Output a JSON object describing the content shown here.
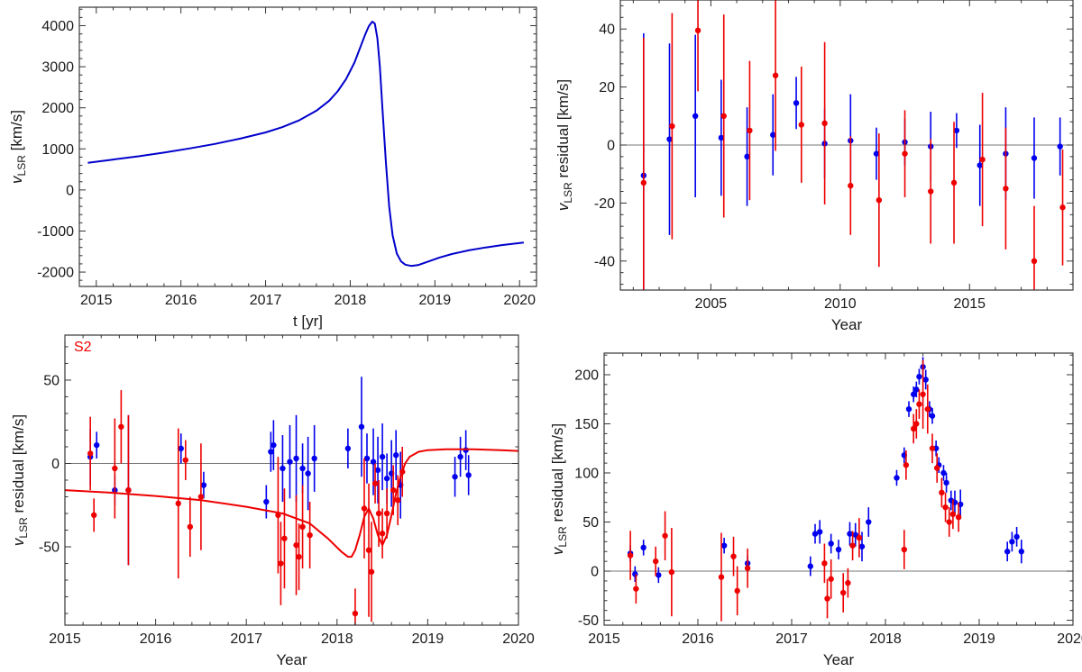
{
  "chart_data": [
    {
      "type": "line",
      "panel": "top-left",
      "xlabel": "t [yr]",
      "ylabel_main": "v",
      "ylabel_sub": "LSR",
      "ylabel_unit": " [km/s]",
      "xlim": [
        2014.8,
        2020.2
      ],
      "ylim": [
        -2350,
        4450
      ],
      "xticks": [
        2015,
        2016,
        2017,
        2018,
        2019,
        2020
      ],
      "yticks": [
        -2000,
        -1000,
        0,
        1000,
        2000,
        3000,
        4000
      ],
      "series": [
        {
          "name": "model",
          "color": "#0000cc",
          "x": [
            2014.9,
            2015.2,
            2015.5,
            2015.8,
            2016.1,
            2016.4,
            2016.7,
            2017.0,
            2017.2,
            2017.4,
            2017.6,
            2017.75,
            2017.85,
            2017.95,
            2018.05,
            2018.12,
            2018.18,
            2018.22,
            2018.26,
            2018.29,
            2018.32,
            2018.35,
            2018.38,
            2018.42,
            2018.46,
            2018.5,
            2018.55,
            2018.6,
            2018.65,
            2018.72,
            2018.8,
            2018.9,
            2019.05,
            2019.2,
            2019.4,
            2019.6,
            2019.8,
            2020.05
          ],
          "y": [
            660,
            740,
            820,
            910,
            1010,
            1120,
            1250,
            1400,
            1530,
            1700,
            1930,
            2170,
            2400,
            2700,
            3100,
            3480,
            3800,
            3990,
            4100,
            4050,
            3700,
            3000,
            2000,
            700,
            -400,
            -1100,
            -1550,
            -1740,
            -1820,
            -1850,
            -1830,
            -1760,
            -1650,
            -1560,
            -1470,
            -1400,
            -1340,
            -1280
          ]
        }
      ]
    },
    {
      "type": "scatter",
      "panel": "top-right",
      "xlabel": "Year",
      "ylabel_main": "v",
      "ylabel_sub": "LSR",
      "ylabel_unit": " residual [km/s]",
      "xlim": [
        2001.5,
        2019.0
      ],
      "ylim": [
        -50,
        50
      ],
      "xticks": [
        2005,
        2010,
        2015
      ],
      "yticks": [
        -40,
        -20,
        0,
        20,
        40
      ],
      "series": [
        {
          "name": "blue",
          "color": "#0000ee",
          "x": [
            2002.4,
            2003.4,
            2004.4,
            2005.4,
            2006.4,
            2007.4,
            2008.3,
            2009.4,
            2010.4,
            2011.4,
            2012.5,
            2013.5,
            2014.5,
            2015.4,
            2016.4,
            2017.5,
            2018.5
          ],
          "y": [
            -10.5,
            2,
            10,
            2.5,
            -4,
            3.5,
            14.5,
            0.5,
            1.5,
            -3,
            1,
            -0.5,
            5,
            -7,
            -3,
            -4.5,
            -0.5
          ],
          "err": [
            49,
            33,
            28,
            20,
            17,
            14,
            9,
            12,
            16,
            9,
            8,
            12,
            6,
            14,
            16,
            14,
            10
          ]
        },
        {
          "name": "red",
          "color": "#ee0000",
          "x": [
            2002.4,
            2003.5,
            2004.5,
            2005.5,
            2006.5,
            2007.5,
            2008.5,
            2009.4,
            2010.4,
            2011.5,
            2012.5,
            2013.5,
            2014.4,
            2015.5,
            2016.4,
            2017.5,
            2018.6
          ],
          "y": [
            -13,
            6.5,
            39.5,
            10,
            5,
            24,
            7,
            7.5,
            -14,
            -19,
            -3,
            -16,
            -13,
            -5,
            -15,
            -40,
            -21.5
          ],
          "err": [
            50,
            39,
            21,
            35,
            24,
            26,
            20,
            28,
            17,
            23,
            15,
            18,
            21,
            23,
            21,
            19,
            20
          ]
        }
      ]
    },
    {
      "type": "scatter",
      "panel": "bottom-left",
      "annotation": "S2",
      "xlabel": "Year",
      "ylabel_main": "v",
      "ylabel_sub": "LSR",
      "ylabel_unit": " residual [km/s]",
      "xlim": [
        2015,
        2020
      ],
      "ylim": [
        -97,
        77
      ],
      "xticks": [
        2015,
        2016,
        2017,
        2018,
        2019,
        2020
      ],
      "yticks": [
        -50,
        0,
        50
      ],
      "series": [
        {
          "name": "blue",
          "color": "#0000ee",
          "x": [
            2015.28,
            2015.35,
            2015.55,
            2015.7,
            2016.28,
            2016.53,
            2017.22,
            2017.27,
            2017.3,
            2017.4,
            2017.48,
            2017.55,
            2017.62,
            2017.68,
            2017.75,
            2018.12,
            2018.27,
            2018.33,
            2018.4,
            2018.45,
            2018.5,
            2018.55,
            2018.6,
            2018.65,
            2018.7,
            2019.3,
            2019.36,
            2019.42,
            2019.45
          ],
          "y": [
            4,
            11,
            -16,
            -16,
            9,
            -13,
            -23,
            7,
            11,
            -3,
            1,
            3,
            -3,
            -6,
            3,
            9,
            22,
            3,
            1,
            -4,
            4,
            -9,
            -6,
            5,
            -13,
            -8,
            4,
            8,
            -7
          ],
          "err": [
            17,
            8,
            9,
            45,
            9,
            8,
            10,
            12,
            15,
            20,
            22,
            26,
            15,
            22,
            20,
            12,
            30,
            15,
            20,
            20,
            20,
            15,
            20,
            15,
            20,
            12,
            12,
            12,
            12
          ]
        },
        {
          "name": "red",
          "color": "#ee0000",
          "x": [
            2015.28,
            2015.32,
            2015.55,
            2015.62,
            2015.7,
            2016.25,
            2016.33,
            2016.38,
            2016.5,
            2017.35,
            2017.38,
            2017.42,
            2017.55,
            2017.58,
            2017.62,
            2017.7,
            2018.2,
            2018.3,
            2018.35,
            2018.38,
            2018.42,
            2018.46,
            2018.5,
            2018.55,
            2018.62,
            2018.67,
            2018.72
          ],
          "y": [
            6,
            -31,
            -3,
            22,
            -16,
            -24,
            2,
            -38,
            -20,
            -31,
            -60,
            -45,
            -49,
            -56,
            -38,
            -43,
            -90,
            -27,
            -52,
            -65,
            -12,
            -30,
            -42,
            -30,
            -16,
            -22,
            -5
          ],
          "err": [
            22,
            10,
            30,
            22,
            45,
            45,
            12,
            18,
            32,
            35,
            25,
            30,
            30,
            20,
            25,
            20,
            15,
            30,
            40,
            30,
            12,
            20,
            15,
            15,
            15,
            15,
            15
          ]
        },
        {
          "name": "S2 curve",
          "color": "#ee0000",
          "x": [
            2015,
            2015.5,
            2016,
            2016.5,
            2017,
            2017.4,
            2017.7,
            2017.9,
            2018.05,
            2018.12,
            2018.16,
            2018.2,
            2018.25,
            2018.3,
            2018.35,
            2018.4,
            2018.45,
            2018.5,
            2018.55,
            2018.6,
            2018.65,
            2018.7,
            2018.75,
            2018.8,
            2018.9,
            2019,
            2019.2,
            2019.5,
            2019.8,
            2020
          ],
          "y": [
            -16,
            -17.5,
            -19.5,
            -22,
            -26,
            -30,
            -36,
            -45,
            -53,
            -56,
            -56,
            -52,
            -43,
            -32,
            -27,
            -33,
            -43,
            -49,
            -43,
            -31,
            -18,
            -8,
            0,
            4,
            7,
            8,
            8.5,
            8.5,
            8,
            7.5
          ]
        }
      ]
    },
    {
      "type": "scatter",
      "panel": "bottom-right",
      "xlabel": "Year",
      "ylabel_main": "v",
      "ylabel_sub": "LSR",
      "ylabel_unit": " residual [km/s]",
      "xlim": [
        2015,
        2020
      ],
      "ylim": [
        -55,
        222
      ],
      "xticks": [
        2015,
        2016,
        2017,
        2018,
        2019,
        2020
      ],
      "yticks": [
        -50,
        0,
        50,
        100,
        150,
        200
      ],
      "series": [
        {
          "name": "blue",
          "color": "#0000ee",
          "x": [
            2015.28,
            2015.33,
            2015.42,
            2015.58,
            2016.28,
            2016.53,
            2017.2,
            2017.25,
            2017.3,
            2017.42,
            2017.5,
            2017.62,
            2017.68,
            2017.75,
            2017.82,
            2018.12,
            2018.2,
            2018.25,
            2018.3,
            2018.33,
            2018.36,
            2018.4,
            2018.43,
            2018.47,
            2018.5,
            2018.54,
            2018.57,
            2018.62,
            2018.65,
            2018.7,
            2018.74,
            2018.8,
            2019.3,
            2019.35,
            2019.4,
            2019.45
          ],
          "y": [
            18,
            -3,
            24,
            -4,
            26,
            8,
            5,
            38,
            40,
            28,
            22,
            38,
            37,
            25,
            50,
            95,
            118,
            165,
            180,
            185,
            198,
            208,
            195,
            165,
            158,
            125,
            108,
            100,
            90,
            72,
            70,
            68,
            20,
            30,
            35,
            20
          ],
          "err": [
            8,
            8,
            8,
            8,
            8,
            8,
            10,
            10,
            12,
            10,
            10,
            12,
            12,
            15,
            15,
            8,
            8,
            8,
            8,
            8,
            8,
            10,
            10,
            8,
            8,
            8,
            8,
            8,
            10,
            10,
            12,
            15,
            10,
            10,
            10,
            12
          ]
        },
        {
          "name": "red",
          "color": "#ee0000",
          "x": [
            2015.28,
            2015.34,
            2015.55,
            2015.65,
            2015.72,
            2016.25,
            2016.38,
            2016.42,
            2016.53,
            2017.35,
            2017.38,
            2017.42,
            2017.55,
            2017.6,
            2017.65,
            2017.72,
            2018.2,
            2018.22,
            2018.3,
            2018.33,
            2018.36,
            2018.4,
            2018.45,
            2018.5,
            2018.55,
            2018.6,
            2018.64,
            2018.68,
            2018.72,
            2018.78
          ],
          "y": [
            16,
            -18,
            10,
            36,
            -1,
            -6,
            15,
            -20,
            3,
            8,
            -28,
            -8,
            -22,
            -12,
            26,
            34,
            22,
            108,
            145,
            150,
            170,
            180,
            165,
            125,
            105,
            80,
            65,
            50,
            58,
            55
          ],
          "err": [
            25,
            15,
            15,
            25,
            45,
            45,
            20,
            25,
            20,
            20,
            20,
            20,
            20,
            15,
            15,
            20,
            20,
            15,
            15,
            15,
            15,
            35,
            25,
            15,
            15,
            15,
            15,
            15,
            15,
            15
          ]
        }
      ]
    }
  ]
}
